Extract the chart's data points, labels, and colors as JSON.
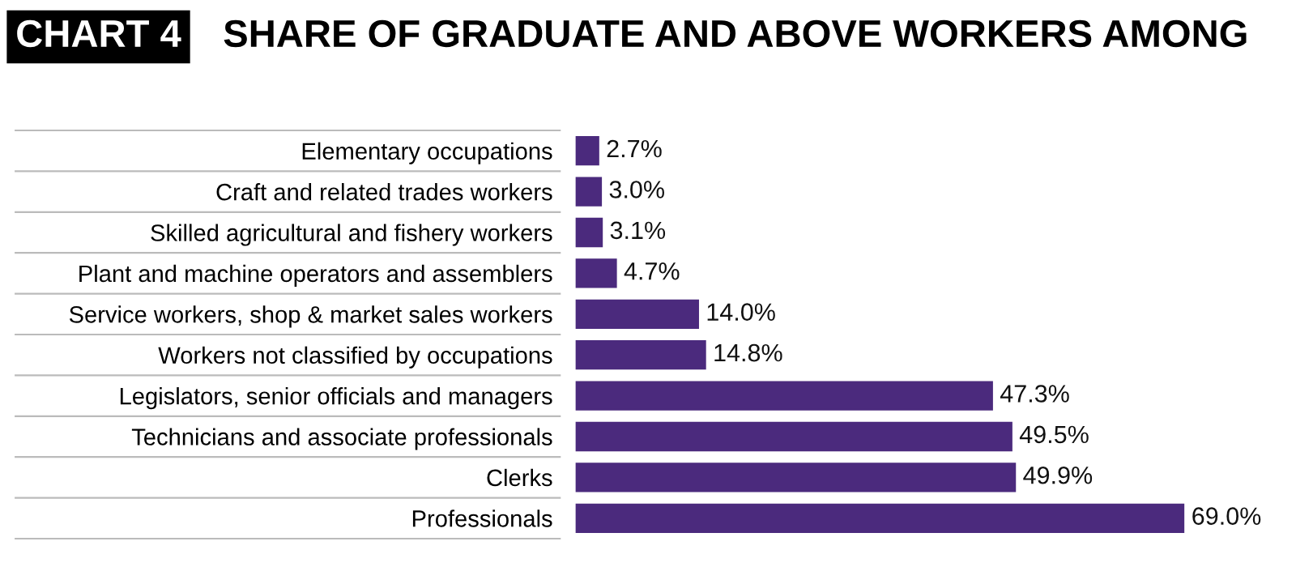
{
  "chart_data": {
    "type": "bar",
    "orientation": "horizontal",
    "title": "SHARE OF GRADUATE AND ABOVE WORKERS AMONG",
    "annotations": [
      "CHART 4"
    ],
    "categories": [
      "Elementary occupations",
      "Craft and related trades workers",
      "Skilled agricultural and fishery workers",
      "Plant and machine operators and assemblers",
      "Service workers, shop & market sales workers",
      "Workers not classified by occupations",
      "Legislators, senior officials and managers",
      "Technicians and associate professionals",
      "Clerks",
      "Professionals"
    ],
    "values": [
      2.7,
      3.0,
      3.1,
      4.7,
      14.0,
      14.8,
      47.3,
      49.5,
      49.9,
      69.0
    ],
    "value_labels": [
      "2.7%",
      "3.0%",
      "3.1%",
      "4.7%",
      "14.0%",
      "14.8%",
      "47.3%",
      "49.5%",
      "49.9%",
      "69.0%"
    ],
    "color": "#4b2a7d",
    "grid": false,
    "legend": false
  }
}
